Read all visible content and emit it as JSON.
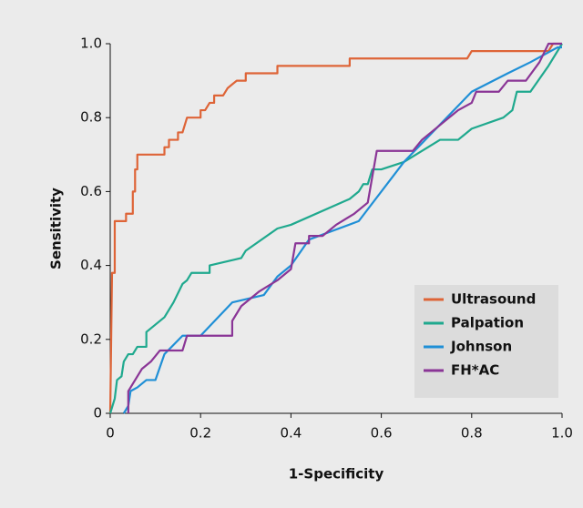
{
  "chart_data": {
    "type": "line",
    "x_label": "1-Specificity",
    "y_label": "Sensitivity",
    "xlim": [
      0,
      1
    ],
    "ylim": [
      0,
      1
    ],
    "xticks": [
      0,
      0.2,
      0.4,
      0.6,
      0.8,
      {
        "value": 1,
        "label": "1.0"
      }
    ],
    "yticks": [
      0,
      0.2,
      0.4,
      0.6,
      0.8,
      {
        "value": 1,
        "label": "1.0"
      }
    ],
    "legend": "lower right",
    "series": [
      {
        "name": "Ultrasound",
        "color": "#de6437",
        "x": [
          0,
          0.004,
          0.01,
          0.01,
          0.035,
          0.035,
          0.05,
          0.05,
          0.055,
          0.055,
          0.06,
          0.06,
          0.12,
          0.12,
          0.13,
          0.13,
          0.15,
          0.15,
          0.16,
          0.17,
          0.2,
          0.2,
          0.21,
          0.22,
          0.23,
          0.23,
          0.25,
          0.26,
          0.27,
          0.28,
          0.3,
          0.3,
          0.37,
          0.37,
          0.53,
          0.53,
          0.79,
          0.8,
          0.97,
          0.98,
          1
        ],
        "values": [
          0,
          0.38,
          0.38,
          0.52,
          0.52,
          0.54,
          0.54,
          0.6,
          0.6,
          0.66,
          0.66,
          0.7,
          0.7,
          0.72,
          0.72,
          0.74,
          0.74,
          0.76,
          0.76,
          0.8,
          0.8,
          0.82,
          0.82,
          0.84,
          0.84,
          0.86,
          0.86,
          0.88,
          0.89,
          0.9,
          0.9,
          0.92,
          0.92,
          0.94,
          0.94,
          0.96,
          0.96,
          0.98,
          0.98,
          1,
          1
        ]
      },
      {
        "name": "Palpation",
        "color": "#1fa98e",
        "x": [
          0,
          0.01,
          0.015,
          0.025,
          0.03,
          0.04,
          0.05,
          0.06,
          0.08,
          0.08,
          0.1,
          0.12,
          0.14,
          0.16,
          0.17,
          0.18,
          0.22,
          0.22,
          0.29,
          0.3,
          0.37,
          0.4,
          0.53,
          0.55,
          0.56,
          0.57,
          0.58,
          0.6,
          0.65,
          0.73,
          0.77,
          0.8,
          0.87,
          0.89,
          0.9,
          0.93,
          0.97,
          1
        ],
        "values": [
          0,
          0.04,
          0.09,
          0.1,
          0.14,
          0.16,
          0.16,
          0.18,
          0.18,
          0.22,
          0.24,
          0.26,
          0.3,
          0.35,
          0.36,
          0.38,
          0.38,
          0.4,
          0.42,
          0.44,
          0.5,
          0.51,
          0.58,
          0.6,
          0.62,
          0.62,
          0.66,
          0.66,
          0.68,
          0.74,
          0.74,
          0.77,
          0.8,
          0.82,
          0.87,
          0.87,
          0.94,
          1
        ]
      },
      {
        "name": "Johnson",
        "color": "#1f8fd6",
        "x": [
          0.03,
          0.04,
          0.045,
          0.06,
          0.08,
          0.1,
          0.12,
          0.16,
          0.2,
          0.27,
          0.34,
          0.37,
          0.4,
          0.44,
          0.55,
          0.65,
          0.8,
          0.88,
          0.93,
          0.99,
          1
        ],
        "values": [
          0,
          0.02,
          0.06,
          0.07,
          0.09,
          0.09,
          0.16,
          0.21,
          0.21,
          0.3,
          0.32,
          0.37,
          0.4,
          0.47,
          0.52,
          0.68,
          0.87,
          0.92,
          0.95,
          0.99,
          0.99
        ]
      },
      {
        "name": "FH*AC",
        "color": "#8a3596",
        "x": [
          0.04,
          0.04,
          0.06,
          0.07,
          0.09,
          0.11,
          0.16,
          0.17,
          0.27,
          0.27,
          0.29,
          0.31,
          0.33,
          0.37,
          0.4,
          0.41,
          0.44,
          0.44,
          0.47,
          0.5,
          0.54,
          0.57,
          0.58,
          0.59,
          0.67,
          0.69,
          0.73,
          0.75,
          0.77,
          0.8,
          0.81,
          0.86,
          0.88,
          0.92,
          0.95,
          0.97,
          1
        ],
        "values": [
          0,
          0.06,
          0.1,
          0.12,
          0.14,
          0.17,
          0.17,
          0.21,
          0.21,
          0.25,
          0.29,
          0.31,
          0.33,
          0.36,
          0.39,
          0.46,
          0.46,
          0.48,
          0.48,
          0.51,
          0.54,
          0.57,
          0.64,
          0.71,
          0.71,
          0.74,
          0.78,
          0.8,
          0.82,
          0.84,
          0.87,
          0.87,
          0.9,
          0.9,
          0.95,
          1,
          1
        ]
      }
    ]
  }
}
